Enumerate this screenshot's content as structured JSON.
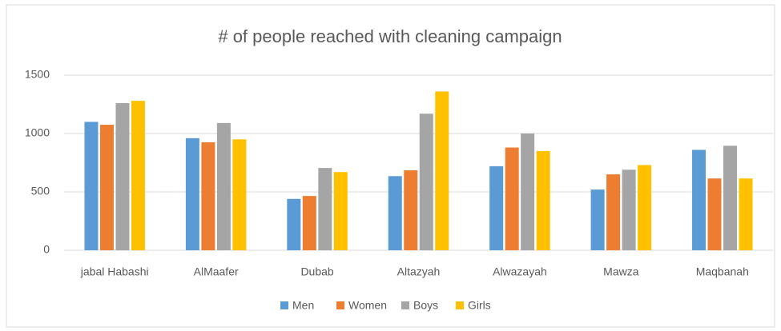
{
  "chart_data": {
    "type": "bar",
    "title": "# of people reached with cleaning campaign",
    "categories": [
      "jabal Habashi",
      "AlMaafer",
      "Dubab",
      "Altazyah",
      "Alwazayah",
      "Mawza",
      "Maqbanah"
    ],
    "series": [
      {
        "name": "Men",
        "color": "#5b9bd5",
        "values": [
          1100,
          960,
          440,
          635,
          720,
          520,
          860
        ]
      },
      {
        "name": "Women",
        "color": "#ed7d31",
        "values": [
          1075,
          925,
          465,
          685,
          880,
          650,
          615
        ]
      },
      {
        "name": "Boys",
        "color": "#a5a5a5",
        "values": [
          1260,
          1090,
          705,
          1170,
          1000,
          690,
          895
        ]
      },
      {
        "name": "Girls",
        "color": "#ffc000",
        "values": [
          1280,
          950,
          670,
          1360,
          850,
          730,
          615
        ]
      }
    ],
    "ylim": [
      0,
      1500
    ],
    "yticks": [
      0,
      500,
      1000,
      1500
    ],
    "grid": true,
    "legend": "bottom"
  }
}
